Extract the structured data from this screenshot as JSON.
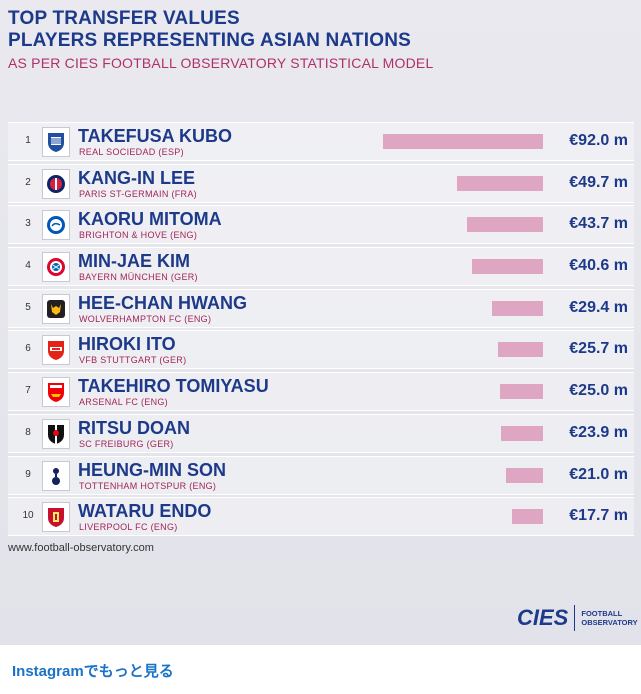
{
  "header": {
    "title_line1": "TOP TRANSFER VALUES",
    "title_line2": "PLAYERS REPRESENTING ASIAN NATIONS",
    "subtitle": "AS PER CIES FOOTBALL OBSERVATORY STATISTICAL MODEL"
  },
  "chart_data": {
    "type": "bar",
    "orientation": "horizontal",
    "title": "TOP TRANSFER VALUES PLAYERS REPRESENTING ASIAN NATIONS",
    "subtitle": "AS PER CIES FOOTBALL OBSERVATORY STATISTICAL MODEL",
    "unit": "€ m",
    "rows": [
      {
        "rank": "1",
        "player": "TAKEFUSA KUBO",
        "club": "REAL SOCIEDAD (ESP)",
        "value": 92.0,
        "label": "€92.0 m"
      },
      {
        "rank": "2",
        "player": "KANG-IN LEE",
        "club": "PARIS ST-GERMAIN (FRA)",
        "value": 49.7,
        "label": "€49.7 m"
      },
      {
        "rank": "3",
        "player": "KAORU MITOMA",
        "club": "BRIGHTON & HOVE (ENG)",
        "value": 43.7,
        "label": "€43.7 m"
      },
      {
        "rank": "4",
        "player": "MIN-JAE KIM",
        "club": "BAYERN MÜNCHEN (GER)",
        "value": 40.6,
        "label": "€40.6 m"
      },
      {
        "rank": "5",
        "player": "HEE-CHAN HWANG",
        "club": "WOLVERHAMPTON FC (ENG)",
        "value": 29.4,
        "label": "€29.4 m"
      },
      {
        "rank": "6",
        "player": "HIROKI ITO",
        "club": "VFB STUTTGART (GER)",
        "value": 25.7,
        "label": "€25.7 m"
      },
      {
        "rank": "7",
        "player": "TAKEHIRO TOMIYASU",
        "club": "ARSENAL FC (ENG)",
        "value": 25.0,
        "label": "€25.0 m"
      },
      {
        "rank": "8",
        "player": "RITSU DOAN",
        "club": "SC FREIBURG (GER)",
        "value": 23.9,
        "label": "€23.9 m"
      },
      {
        "rank": "9",
        "player": "HEUNG-MIN SON",
        "club": "TOTTENHAM HOTSPUR (ENG)",
        "value": 21.0,
        "label": "€21.0 m"
      },
      {
        "rank": "10",
        "player": "WATARU ENDO",
        "club": "LIVERPOOL FC (ENG)",
        "value": 17.7,
        "label": "€17.7 m"
      }
    ],
    "xlim": [
      0,
      92.0
    ],
    "grid": false,
    "legend": "none"
  },
  "colors": {
    "title": "#1d3a8a",
    "subtitle": "#b0306a",
    "bar": "#dfa6c3",
    "link": "#1a73c8"
  },
  "logo_icons": [
    "real-sociedad-crest-icon",
    "psg-crest-icon",
    "brighton-crest-icon",
    "bayern-crest-icon",
    "wolves-crest-icon",
    "stuttgart-crest-icon",
    "arsenal-crest-icon",
    "freiburg-crest-icon",
    "tottenham-crest-icon",
    "liverpool-crest-icon"
  ],
  "footer": {
    "source": "www.football-observatory.com",
    "brand_mark": "CIES",
    "brand_line1": "FOOTBALL",
    "brand_line2": "OBSERVATORY"
  },
  "instagram": {
    "link_label": "Instagramでもっと見る"
  }
}
